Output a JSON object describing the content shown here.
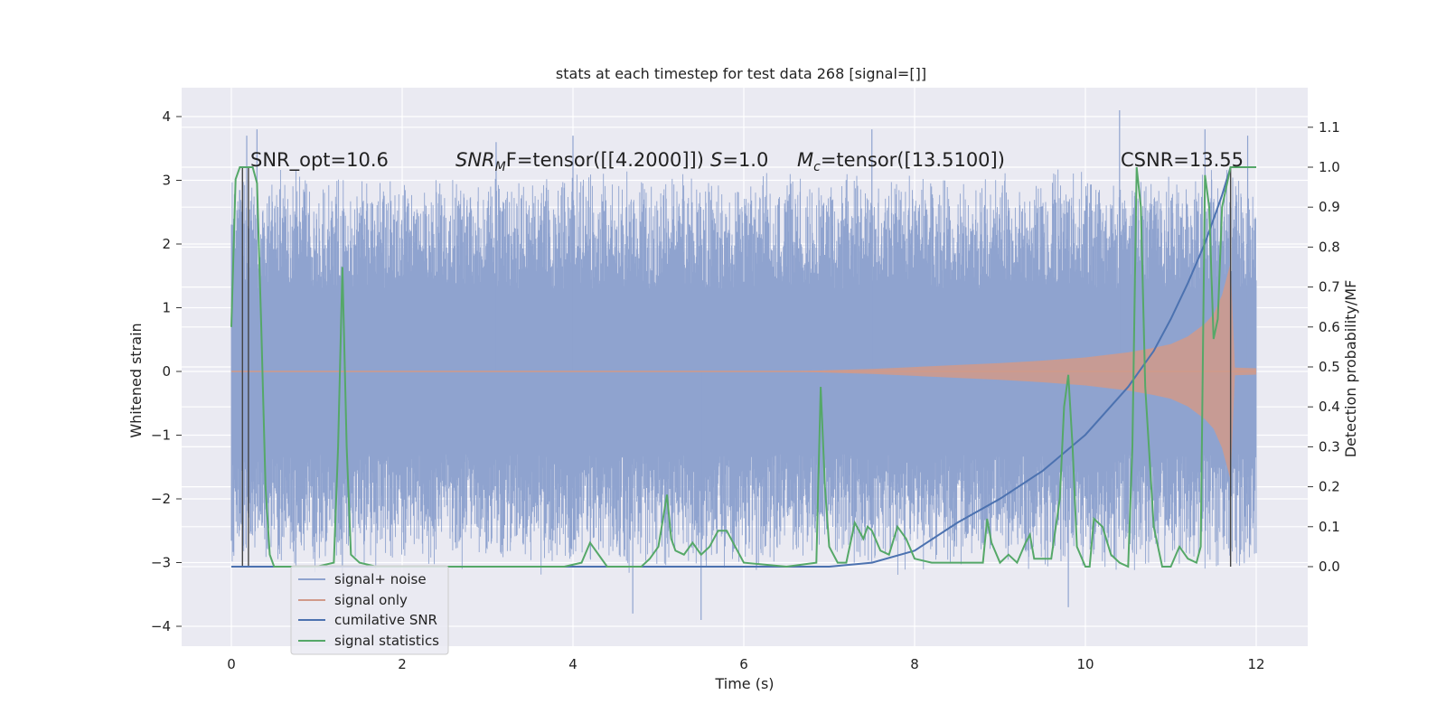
{
  "chart_data": {
    "type": "line",
    "title": "stats at each timestep for test data 268 [signal=[]]",
    "xlabel": "Time (s)",
    "ylabel": "Whitened strain",
    "ylabel_right": "Detection probability/MF",
    "xlim": [
      -0.5,
      12.6
    ],
    "ylim": [
      -4.4,
      4.5
    ],
    "ylim_right": [
      -0.2,
      1.18
    ],
    "x_ticks": [
      "0",
      "2",
      "4",
      "6",
      "8",
      "10",
      "12"
    ],
    "y_ticks": [
      "−4",
      "−3",
      "−2",
      "−1",
      "0",
      "1",
      "2",
      "3",
      "4"
    ],
    "y_ticks_right": [
      "0.0",
      "0.1",
      "0.2",
      "0.3",
      "0.4",
      "0.5",
      "0.6",
      "0.7",
      "0.8",
      "0.9",
      "1.0",
      "1.1"
    ],
    "grid": true,
    "legend_position": "lower-left",
    "annotations": {
      "snr_opt": "SNR_opt=10.6",
      "snr_mf_label": "SNR",
      "snr_mf_sub": "M",
      "snr_mf_rest": "F=tensor([[4.2000]])",
      "s_italic": "S",
      "s_value": "=1.0",
      "mc_label": "M",
      "mc_sub": "c",
      "mc_value": "=tensor([13.5100])",
      "csnr": "CSNR=13.55"
    },
    "series": [
      {
        "name": "signal+ noise",
        "color": "#8fa3cf",
        "axis": "left",
        "kind": "noise-band",
        "x_range": [
          0,
          12
        ],
        "core_range": [
          -1.3,
          1.3
        ],
        "typical_range": [
          -2.6,
          2.6
        ],
        "peaks_x": [
          0.18,
          0.3,
          1.3,
          3.1,
          4.0,
          4.7,
          5.5,
          7.5,
          9.8,
          10.4,
          11.4,
          11.9
        ],
        "peaks_y": [
          3.7,
          3.8,
          -3.3,
          3.6,
          3.7,
          -3.8,
          -3.9,
          3.8,
          -3.7,
          4.1,
          3.8,
          3.7
        ]
      },
      {
        "name": "signal only",
        "color": "#d19a8a",
        "axis": "left",
        "kind": "chirp-envelope",
        "x": [
          6.5,
          7.0,
          7.5,
          8.0,
          8.5,
          9.0,
          9.5,
          10.0,
          10.5,
          10.8,
          11.0,
          11.2,
          11.4,
          11.5,
          11.6,
          11.7,
          11.75,
          12.0
        ],
        "amplitude": [
          0.0,
          0.02,
          0.04,
          0.07,
          0.1,
          0.13,
          0.17,
          0.22,
          0.3,
          0.37,
          0.43,
          0.55,
          0.75,
          0.9,
          1.2,
          1.7,
          0.06,
          0.05
        ]
      },
      {
        "name": "cumilative SNR",
        "color": "#4c72b0",
        "axis": "right",
        "x": [
          0,
          7.0,
          7.5,
          8.0,
          8.5,
          9.0,
          9.5,
          10.0,
          10.5,
          10.8,
          11.0,
          11.2,
          11.4,
          11.5,
          11.6,
          11.7
        ],
        "values": [
          0.0,
          0.0,
          0.01,
          0.04,
          0.11,
          0.17,
          0.24,
          0.33,
          0.45,
          0.54,
          0.62,
          0.71,
          0.81,
          0.87,
          0.93,
          1.0
        ]
      },
      {
        "name": "signal statistics",
        "color": "#55a868",
        "axis": "right",
        "x": [
          0,
          0.05,
          0.1,
          0.15,
          0.2,
          0.25,
          0.3,
          0.35,
          0.4,
          0.45,
          0.5,
          0.6,
          1.0,
          1.2,
          1.25,
          1.3,
          1.35,
          1.4,
          1.5,
          1.7,
          2.0,
          2.5,
          3.0,
          3.5,
          3.9,
          4.1,
          4.2,
          4.4,
          4.6,
          4.8,
          4.9,
          5.0,
          5.1,
          5.15,
          5.2,
          5.3,
          5.4,
          5.5,
          5.6,
          5.7,
          5.8,
          6.0,
          6.5,
          6.85,
          6.9,
          6.95,
          7.0,
          7.1,
          7.2,
          7.3,
          7.4,
          7.45,
          7.5,
          7.6,
          7.7,
          7.8,
          7.9,
          8.0,
          8.2,
          8.4,
          8.6,
          8.8,
          8.85,
          8.9,
          9.0,
          9.1,
          9.2,
          9.3,
          9.35,
          9.4,
          9.5,
          9.6,
          9.7,
          9.75,
          9.8,
          9.85,
          9.9,
          10.0,
          10.05,
          10.1,
          10.2,
          10.3,
          10.4,
          10.5,
          10.55,
          10.6,
          10.65,
          10.7,
          10.8,
          10.9,
          11.0,
          11.1,
          11.2,
          11.3,
          11.35,
          11.4,
          11.45,
          11.5,
          11.55,
          11.6,
          11.65,
          11.7,
          11.75,
          12.0
        ],
        "values": [
          0.6,
          0.97,
          1.0,
          1.0,
          1.0,
          1.0,
          0.96,
          0.6,
          0.2,
          0.03,
          0.0,
          0.0,
          0.0,
          0.01,
          0.3,
          0.75,
          0.3,
          0.03,
          0.01,
          0.0,
          0.0,
          0.0,
          0.0,
          0.0,
          0.0,
          0.01,
          0.06,
          0.0,
          0.0,
          0.0,
          0.02,
          0.05,
          0.18,
          0.07,
          0.04,
          0.03,
          0.06,
          0.03,
          0.05,
          0.09,
          0.09,
          0.01,
          0.0,
          0.01,
          0.45,
          0.2,
          0.05,
          0.01,
          0.01,
          0.11,
          0.07,
          0.1,
          0.09,
          0.04,
          0.03,
          0.1,
          0.07,
          0.02,
          0.01,
          0.01,
          0.01,
          0.01,
          0.12,
          0.06,
          0.01,
          0.03,
          0.01,
          0.06,
          0.08,
          0.02,
          0.02,
          0.02,
          0.17,
          0.4,
          0.48,
          0.3,
          0.05,
          0.0,
          0.0,
          0.12,
          0.1,
          0.03,
          0.01,
          0.0,
          0.3,
          1.0,
          0.9,
          0.45,
          0.1,
          0.0,
          0.0,
          0.05,
          0.02,
          0.01,
          0.05,
          0.98,
          0.9,
          0.57,
          0.62,
          0.9,
          0.95,
          1.0,
          1.0,
          1.0
        ]
      }
    ],
    "vertical_lines_x": [
      0.13,
      0.2,
      11.7
    ]
  }
}
